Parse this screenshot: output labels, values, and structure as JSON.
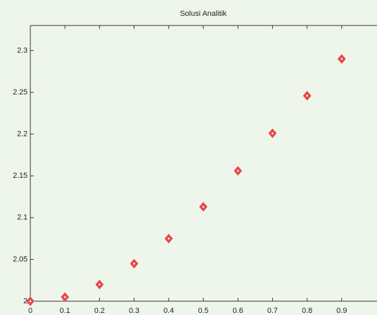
{
  "chart_data": {
    "type": "scatter",
    "title": "Solusi Analitik",
    "x": [
      0,
      0.1,
      0.2,
      0.3,
      0.4,
      0.5,
      0.6,
      0.7,
      0.8,
      0.9
    ],
    "series": [
      {
        "color": "#e8484a",
        "values": [
          2.0,
          2.005,
          2.02,
          2.045,
          2.075,
          2.113,
          2.156,
          2.201,
          2.246,
          2.29
        ]
      }
    ],
    "xlim": [
      0,
      1
    ],
    "xticks": [
      0,
      0.1,
      0.2,
      0.3,
      0.4,
      0.5,
      0.6,
      0.7,
      0.8,
      0.9
    ],
    "ylim": [
      2,
      2.33
    ],
    "yticks": [
      2,
      2.05,
      2.1,
      2.15,
      2.2,
      2.25,
      2.3
    ]
  }
}
